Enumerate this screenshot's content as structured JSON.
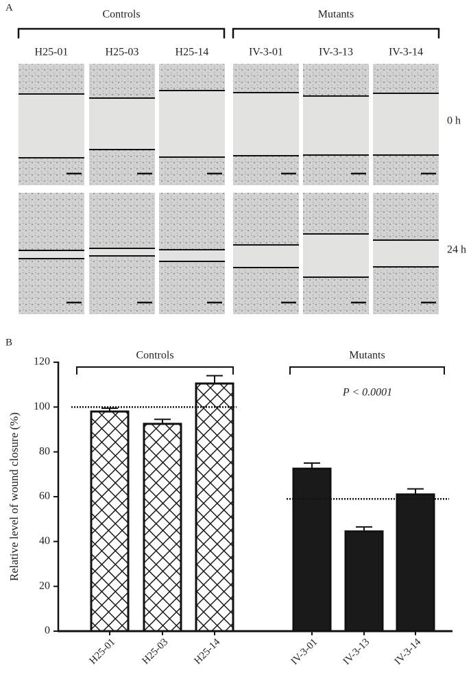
{
  "panel_a": {
    "label": "A",
    "groups": [
      {
        "name": "Controls",
        "samples": [
          "H25-01",
          "H25-03",
          "H25-14"
        ]
      },
      {
        "name": "Mutants",
        "samples": [
          "IV-3-01",
          "IV-3-13",
          "IV-3-14"
        ]
      }
    ],
    "rows": [
      "0 h",
      "24 h"
    ]
  },
  "chart_data": {
    "type": "bar",
    "panel_label": "B",
    "y_label": "Relative level of wound closure (%)",
    "annotation": "P < 0.0001",
    "ylim": [
      0,
      120
    ],
    "yticks": [
      0,
      20,
      40,
      60,
      80,
      100,
      120
    ],
    "groups": [
      {
        "name": "Controls",
        "fill": "crosshatch",
        "reference": 100,
        "categories": [
          "H25-01",
          "H25-03",
          "H25-14"
        ],
        "values": [
          98,
          92.5,
          110.5
        ],
        "errors": [
          1.5,
          2,
          3.5
        ]
      },
      {
        "name": "Mutants",
        "fill": "#1a1a1a",
        "reference": 59,
        "categories": [
          "IV-3-01",
          "IV-3-13",
          "IV-3-14"
        ],
        "values": [
          72.5,
          44.5,
          61
        ],
        "errors": [
          2.5,
          2,
          2.5
        ]
      }
    ]
  }
}
